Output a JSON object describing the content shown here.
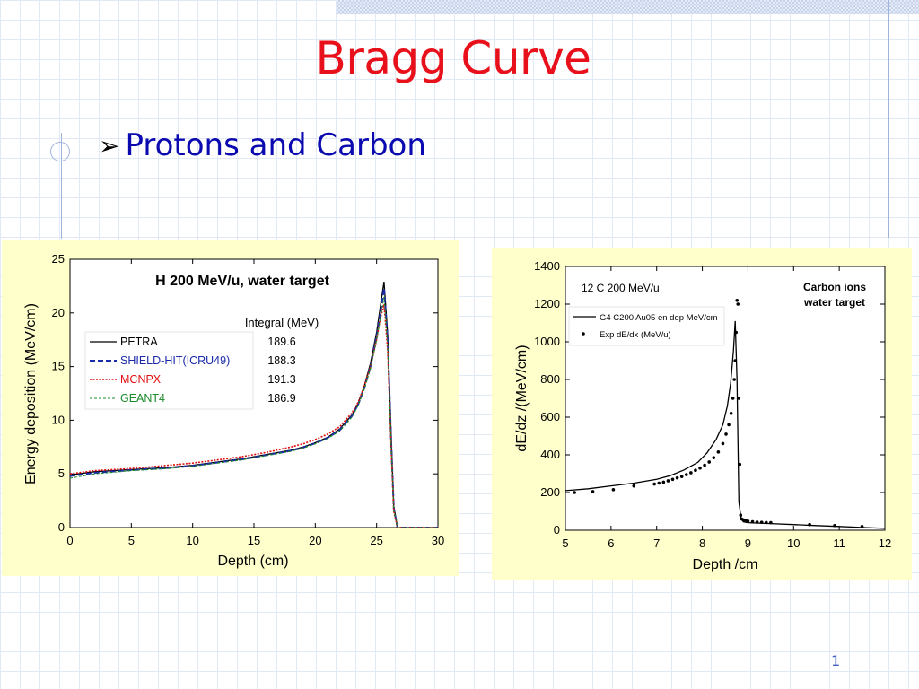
{
  "slide": {
    "title": "Bragg Curve",
    "bullet": "Protons and Carbon",
    "page_number": "1"
  },
  "colors": {
    "title": "#e8101a",
    "bullet": "#0a0ab0",
    "panel_bg": "#ffffcc",
    "petra": "#000000",
    "shield": "#1a2aa8",
    "mcnpx": "#e01010",
    "geant4": "#1a8a2a"
  },
  "chart_data": [
    {
      "type": "line",
      "title": "H 200 MeV/u,  water target",
      "xlabel": "Depth (cm)",
      "ylabel": "Energy deposition (MeV/cm)",
      "xlim": [
        0,
        30
      ],
      "ylim": [
        0,
        25
      ],
      "xticks": [
        "0",
        "5",
        "10",
        "15",
        "20",
        "25",
        "30"
      ],
      "yticks": [
        "0",
        "5",
        "10",
        "15",
        "20",
        "25"
      ],
      "grid": false,
      "legend_position": "upper-left",
      "legend_header": "Integral (MeV)",
      "series": [
        {
          "name": "PETRA",
          "integral": "189.6",
          "style": "solid",
          "x": [
            0,
            2,
            5,
            8,
            10,
            12,
            14,
            16,
            18,
            19,
            20,
            21,
            22,
            23,
            23.5,
            24,
            24.5,
            25,
            25.3,
            25.6,
            25.9,
            26.2,
            26.4,
            26.7,
            30
          ],
          "y": [
            4.9,
            5.2,
            5.4,
            5.6,
            5.8,
            6.1,
            6.4,
            6.8,
            7.2,
            7.5,
            7.9,
            8.4,
            9.2,
            10.5,
            11.6,
            13.2,
            15.3,
            18.2,
            20.6,
            22.9,
            18.0,
            8.0,
            2.0,
            0.0,
            0.0
          ]
        },
        {
          "name": "SHIELD-HIT(ICRU49)",
          "integral": "188.3",
          "style": "dash",
          "x": [
            0,
            2,
            5,
            8,
            10,
            12,
            14,
            16,
            18,
            19,
            20,
            21,
            22,
            23,
            23.5,
            24,
            24.5,
            25,
            25.3,
            25.6,
            25.9,
            26.2,
            26.4,
            26.7,
            30
          ],
          "y": [
            4.8,
            5.1,
            5.35,
            5.55,
            5.75,
            6.05,
            6.35,
            6.75,
            7.15,
            7.45,
            7.85,
            8.35,
            9.1,
            10.4,
            11.5,
            13.0,
            15.0,
            17.8,
            20.0,
            22.3,
            17.5,
            7.5,
            1.8,
            0.0,
            0.0
          ]
        },
        {
          "name": "MCNPX",
          "integral": "191.3",
          "style": "dot",
          "x": [
            0,
            2,
            5,
            8,
            10,
            12,
            14,
            16,
            18,
            19,
            20,
            21,
            22,
            23,
            23.5,
            24,
            24.5,
            25,
            25.3,
            25.6,
            25.9,
            26.2,
            26.4,
            26.7,
            30
          ],
          "y": [
            5.0,
            5.3,
            5.5,
            5.8,
            6.0,
            6.3,
            6.6,
            7.0,
            7.5,
            7.8,
            8.2,
            8.7,
            9.4,
            10.7,
            11.7,
            13.2,
            15.0,
            17.5,
            19.5,
            20.8,
            16.5,
            7.0,
            1.5,
            0.0,
            0.0
          ]
        },
        {
          "name": "GEANT4",
          "integral": "186.9",
          "style": "fine-dash",
          "x": [
            0,
            2,
            5,
            8,
            10,
            12,
            14,
            16,
            18,
            19,
            20,
            21,
            22,
            23,
            23.5,
            24,
            24.5,
            25,
            25.3,
            25.6,
            25.9,
            26.2,
            26.4,
            26.7,
            30
          ],
          "y": [
            4.6,
            5.0,
            5.3,
            5.5,
            5.7,
            6.0,
            6.3,
            6.7,
            7.1,
            7.4,
            7.8,
            8.3,
            9.0,
            10.3,
            11.4,
            12.9,
            14.8,
            17.5,
            19.5,
            21.5,
            17.0,
            7.2,
            1.6,
            0.0,
            0.0
          ]
        }
      ]
    },
    {
      "type": "line",
      "title": "12 C 200 MeV/u",
      "annotation": [
        "Carbon ions",
        "water target"
      ],
      "xlabel": "Depth /cm",
      "ylabel": "dE/dz /(MeV/cm)",
      "xlim": [
        5,
        12
      ],
      "ylim": [
        0,
        1400
      ],
      "xticks": [
        "5",
        "6",
        "7",
        "8",
        "9",
        "10",
        "11",
        "12"
      ],
      "yticks": [
        "0",
        "200",
        "400",
        "600",
        "800",
        "1000",
        "1200",
        "1400"
      ],
      "grid": false,
      "legend_position": "upper-left",
      "series": [
        {
          "name": "G4 C200 Au05 en dep MeV/cm",
          "style": "solid",
          "x": [
            5.0,
            5.5,
            6.0,
            6.5,
            7.0,
            7.3,
            7.6,
            7.9,
            8.1,
            8.3,
            8.45,
            8.55,
            8.62,
            8.68,
            8.72,
            8.76,
            8.8,
            8.85,
            8.9,
            9.0,
            9.5,
            10.0,
            10.5,
            11.0,
            11.5,
            12.0
          ],
          "y": [
            210,
            220,
            235,
            250,
            270,
            290,
            320,
            360,
            410,
            480,
            560,
            660,
            780,
            950,
            1110,
            800,
            150,
            60,
            45,
            40,
            35,
            30,
            25,
            20,
            15,
            10
          ]
        },
        {
          "name": "Exp dE/dx (MeV/u)",
          "style": "points",
          "x": [
            5.2,
            5.6,
            6.05,
            6.5,
            6.95,
            7.05,
            7.15,
            7.25,
            7.35,
            7.45,
            7.55,
            7.65,
            7.75,
            7.85,
            7.95,
            8.05,
            8.15,
            8.25,
            8.35,
            8.45,
            8.52,
            8.58,
            8.63,
            8.67,
            8.7,
            8.72,
            8.74,
            8.76,
            8.78,
            8.8,
            8.82,
            8.84,
            8.86,
            8.9,
            8.95,
            9.0,
            9.1,
            9.2,
            9.3,
            9.4,
            9.5,
            10.35,
            10.9,
            11.5
          ],
          "y": [
            200,
            205,
            215,
            235,
            245,
            250,
            255,
            262,
            270,
            278,
            285,
            295,
            305,
            318,
            330,
            345,
            362,
            385,
            415,
            460,
            510,
            560,
            620,
            700,
            800,
            900,
            1050,
            1220,
            1200,
            700,
            350,
            80,
            60,
            55,
            52,
            48,
            45,
            43,
            42,
            41,
            40,
            30,
            25,
            20
          ]
        }
      ]
    }
  ]
}
